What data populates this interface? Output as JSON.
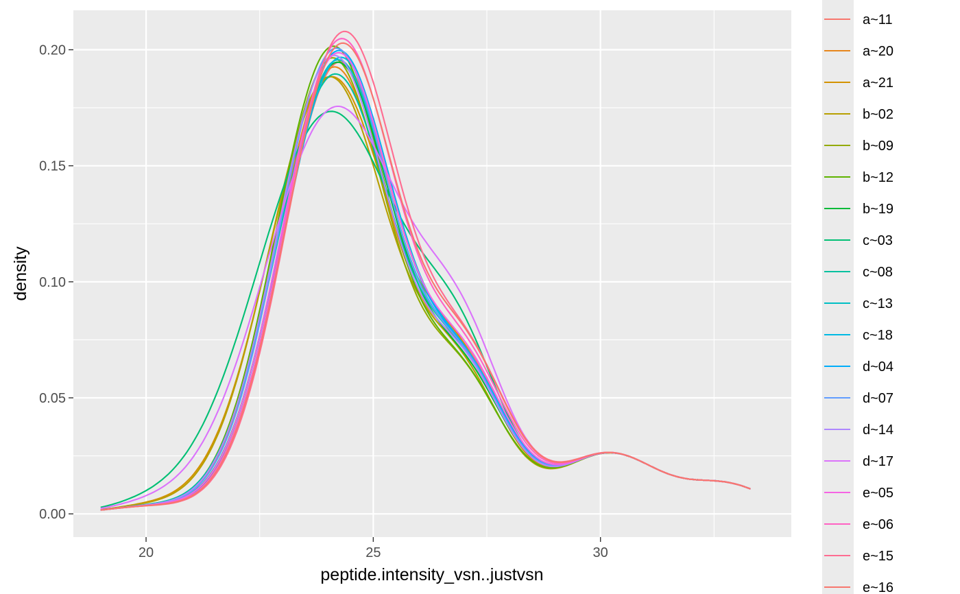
{
  "chart_data": {
    "type": "line",
    "xlabel": "peptide.intensity_vsn..justvsn",
    "ylabel": "density",
    "xlim": [
      18.4,
      34.2
    ],
    "ylim": [
      -0.01,
      0.217
    ],
    "x_ticks": [
      20,
      25,
      30
    ],
    "y_ticks": [
      0.0,
      0.05,
      0.1,
      0.15,
      0.2
    ],
    "x_tick_labels": [
      "20",
      "25",
      "30"
    ],
    "y_tick_labels": [
      "0.00",
      "0.05",
      "0.10",
      "0.15",
      "0.20"
    ],
    "background": "#ebebeb",
    "grid": true,
    "legend_placement": "right",
    "series": [
      {
        "name": "a~11",
        "color": "#F8766D",
        "offset": 0.1,
        "peak": 0.194,
        "plateau": 0.0,
        "shoulder": 1.0
      },
      {
        "name": "a~20",
        "color": "#E7861B",
        "offset": -0.02,
        "peak": 0.192,
        "plateau": 0.0,
        "shoulder": 1.02
      },
      {
        "name": "a~21",
        "color": "#D39200",
        "offset": -0.08,
        "peak": 0.191,
        "plateau": 0.3,
        "shoulder": 0.98
      },
      {
        "name": "b~02",
        "color": "#B79F00",
        "offset": -0.12,
        "peak": 0.19,
        "plateau": 0.2,
        "shoulder": 0.95
      },
      {
        "name": "b~09",
        "color": "#93AA00",
        "offset": -0.06,
        "peak": 0.196,
        "plateau": 0.0,
        "shoulder": 0.94
      },
      {
        "name": "b~12",
        "color": "#5EB300",
        "offset": -0.04,
        "peak": 0.201,
        "plateau": 0.0,
        "shoulder": 0.93
      },
      {
        "name": "b~19",
        "color": "#00BA38",
        "offset": 0.05,
        "peak": 0.194,
        "plateau": 0.0,
        "shoulder": 0.95
      },
      {
        "name": "c~03",
        "color": "#00BF74",
        "offset": -0.1,
        "peak": 0.183,
        "plateau": 1.0,
        "shoulder": 0.96
      },
      {
        "name": "c~08",
        "color": "#00C19F",
        "offset": 0.0,
        "peak": 0.19,
        "plateau": 0.1,
        "shoulder": 0.98
      },
      {
        "name": "c~13",
        "color": "#00BFC4",
        "offset": 0.06,
        "peak": 0.195,
        "plateau": 0.0,
        "shoulder": 0.99
      },
      {
        "name": "c~18",
        "color": "#00B9E3",
        "offset": 0.12,
        "peak": 0.196,
        "plateau": 0.0,
        "shoulder": 0.97
      },
      {
        "name": "d~04",
        "color": "#00ADFA",
        "offset": 0.08,
        "peak": 0.199,
        "plateau": 0.0,
        "shoulder": 0.98
      },
      {
        "name": "d~07",
        "color": "#619CFF",
        "offset": 0.02,
        "peak": 0.2,
        "plateau": 0.0,
        "shoulder": 1.0
      },
      {
        "name": "d~14",
        "color": "#AE87FF",
        "offset": -0.03,
        "peak": 0.197,
        "plateau": 0.0,
        "shoulder": 1.01
      },
      {
        "name": "d~17",
        "color": "#DB72FB",
        "offset": 0.04,
        "peak": 0.184,
        "plateau": 0.9,
        "shoulder": 1.02
      },
      {
        "name": "e~05",
        "color": "#F564E3",
        "offset": 0.07,
        "peak": 0.198,
        "plateau": 0.0,
        "shoulder": 1.03
      },
      {
        "name": "e~06",
        "color": "#FF61C3",
        "offset": 0.14,
        "peak": 0.204,
        "plateau": 0.0,
        "shoulder": 1.04
      },
      {
        "name": "e~15",
        "color": "#FF6C91",
        "offset": 0.2,
        "peak": 0.207,
        "plateau": 0.0,
        "shoulder": 1.06
      },
      {
        "name": "e~16",
        "color": "#F8766D",
        "offset": 0.16,
        "peak": 0.202,
        "plateau": 0.0,
        "shoulder": 1.08
      }
    ]
  }
}
